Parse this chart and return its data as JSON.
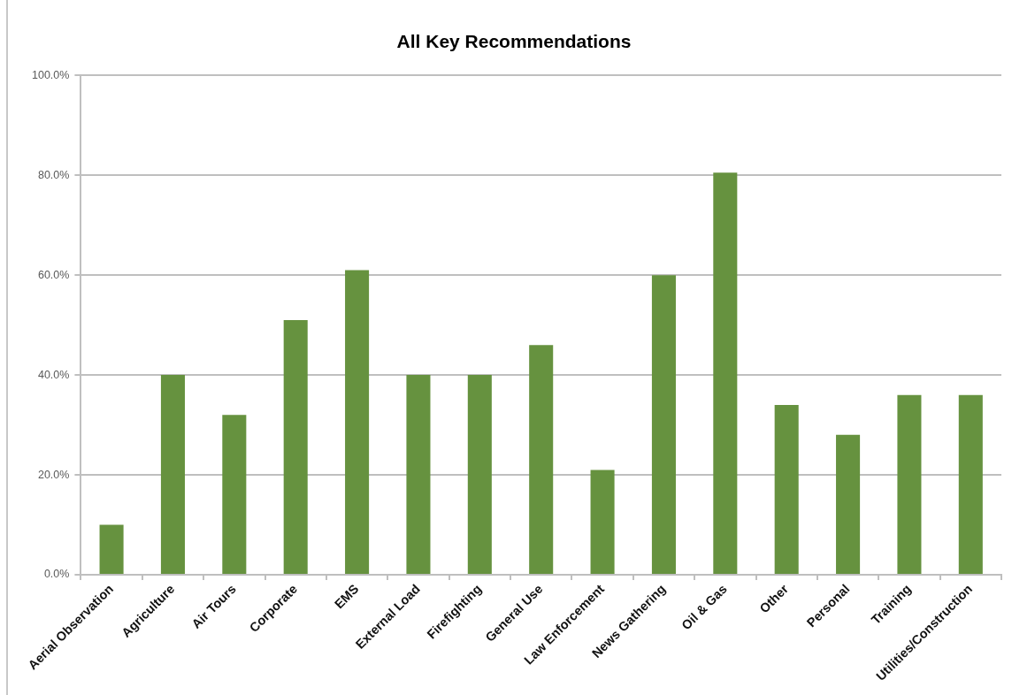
{
  "chart_data": {
    "type": "bar",
    "title": "All Key Recommendations",
    "categories": [
      "Aerial Observation",
      "Agriculture",
      "Air Tours",
      "Corporate",
      "EMS",
      "External Load",
      "Firefighting",
      "General Use",
      "Law Enforcement",
      "News Gathering",
      "Oil & Gas",
      "Other",
      "Personal",
      "Training",
      "Utilities/Construction"
    ],
    "values": [
      10,
      40,
      32,
      51,
      61,
      40,
      40,
      46,
      21,
      60,
      80.5,
      34,
      28,
      36,
      36
    ],
    "color": "#66923f",
    "ylim": [
      0,
      100
    ],
    "yticks": [
      {
        "value": 0,
        "label": "0.0%"
      },
      {
        "value": 20,
        "label": "20.0%"
      },
      {
        "value": 40,
        "label": "40.0%"
      },
      {
        "value": 60,
        "label": "60.0%"
      },
      {
        "value": 80,
        "label": "80.0%"
      },
      {
        "value": 100,
        "label": "100.0%"
      }
    ],
    "grid": "y"
  }
}
